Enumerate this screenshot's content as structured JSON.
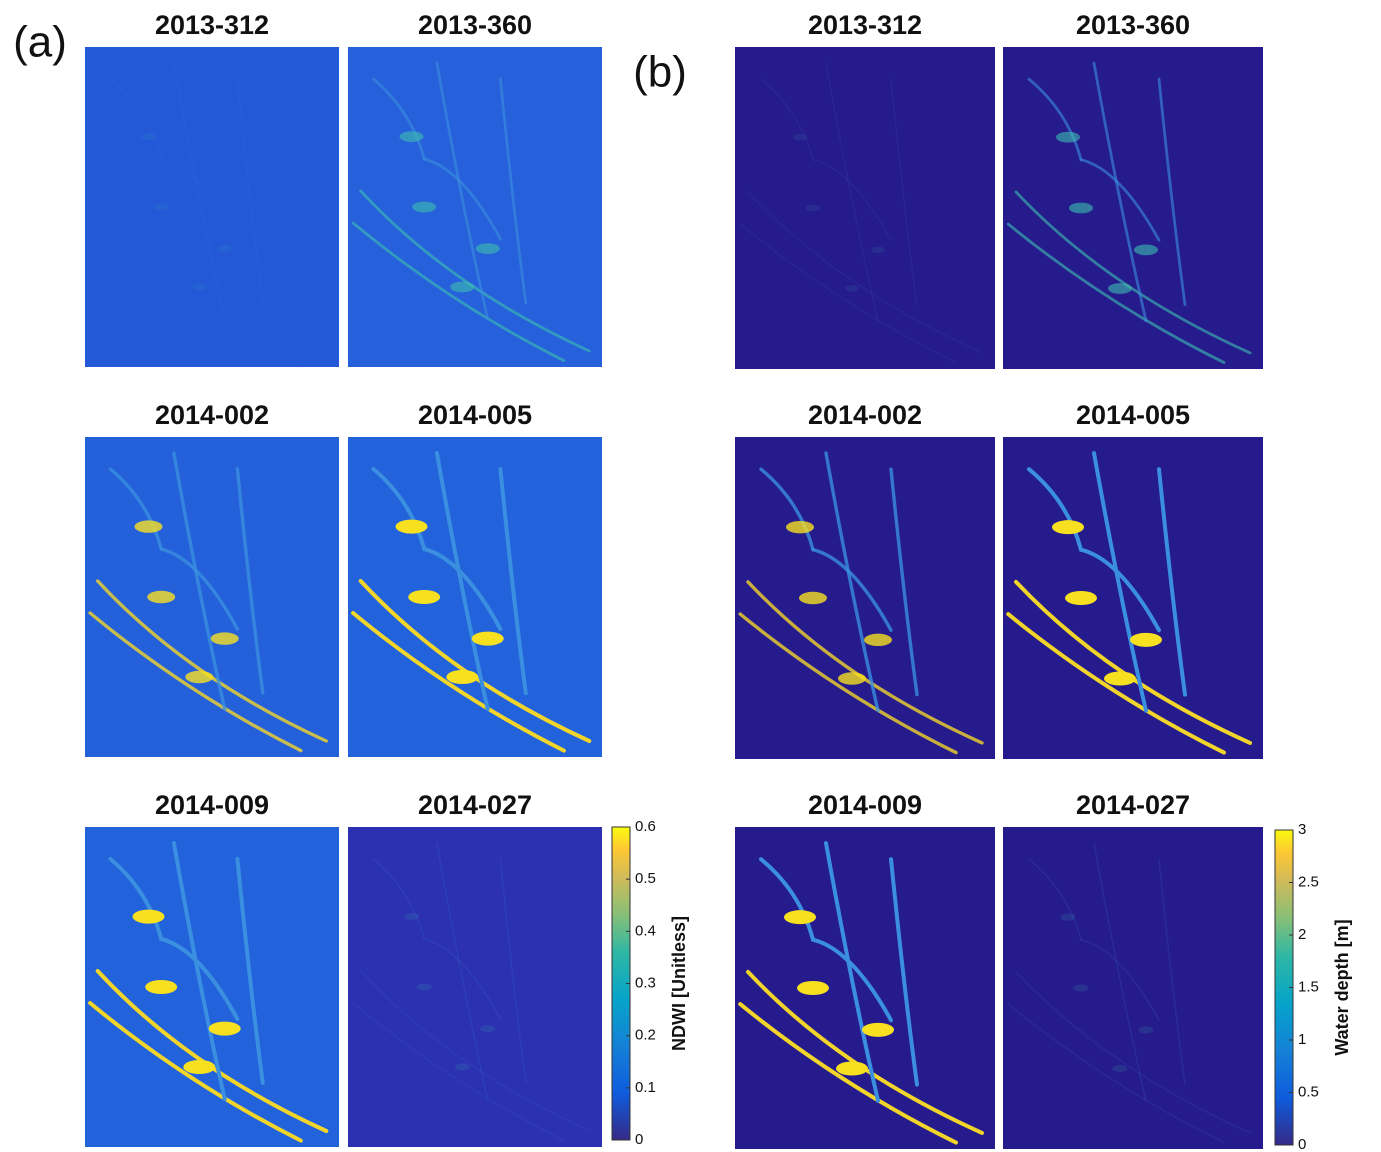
{
  "panels": [
    {
      "label": "(a)",
      "images": [
        {
          "title": "2013-312"
        },
        {
          "title": "2013-360"
        },
        {
          "title": "2014-002"
        },
        {
          "title": "2014-005"
        },
        {
          "title": "2014-009"
        },
        {
          "title": "2014-027"
        }
      ],
      "colorbar": {
        "label": "NDWI [Unitless]",
        "lim": [
          0,
          0.6
        ],
        "ticks": [
          0,
          0.1,
          0.2,
          0.3,
          0.4,
          0.5,
          0.6
        ]
      }
    },
    {
      "label": "(b)",
      "images": [
        {
          "title": "2013-312"
        },
        {
          "title": "2013-360"
        },
        {
          "title": "2014-002"
        },
        {
          "title": "2014-005"
        },
        {
          "title": "2014-009"
        },
        {
          "title": "2014-027"
        }
      ],
      "colorbar": {
        "label": "Water depth [m]",
        "lim": [
          0,
          3
        ],
        "ticks": [
          0,
          0.5,
          1,
          1.5,
          2,
          2.5,
          3
        ]
      }
    }
  ]
}
